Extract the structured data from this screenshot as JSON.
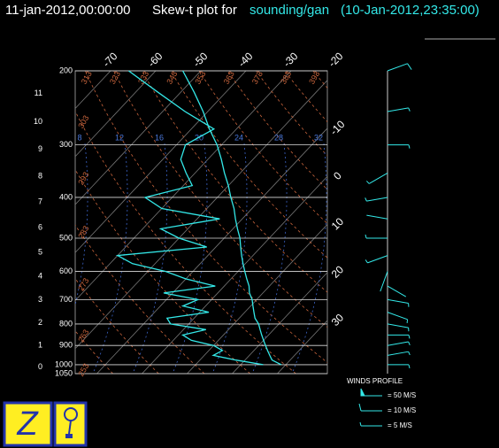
{
  "header": {
    "time": "11-jan-2012,00:00:00",
    "title": "Skew-t plot for",
    "source": "sounding/gan",
    "obs_time": "(10-Jan-2012,23:35:00)"
  },
  "chart_data": {
    "type": "skewt",
    "ylim": [
      200,
      1050
    ],
    "log_scale": true,
    "pressure_ticks": [
      200,
      300,
      400,
      500,
      600,
      700,
      800,
      900,
      1000,
      1050
    ],
    "height_ticks": [
      0,
      1,
      2,
      3,
      4,
      5,
      6,
      7,
      8,
      9,
      10,
      11
    ],
    "temperature_ticks": [
      -70,
      -60,
      -50,
      -40,
      -30,
      -20,
      -10,
      0,
      10,
      20,
      30
    ],
    "adiabat_labels": [
      253,
      263,
      273,
      283,
      293,
      303,
      313,
      323,
      333,
      343,
      353,
      363,
      373,
      383,
      393
    ],
    "moist_labels": [
      8,
      12,
      16,
      20,
      24,
      28,
      32
    ],
    "color": "#33e8e8",
    "pressure": [
      1000,
      975,
      950,
      925,
      900,
      875,
      850,
      825,
      800,
      775,
      750,
      725,
      700,
      675,
      650,
      625,
      600,
      575,
      550,
      525,
      500,
      475,
      450,
      425,
      400,
      375,
      350,
      325,
      300,
      275,
      250,
      225,
      200
    ],
    "temperature": [
      29,
      26,
      24.5,
      23,
      21.5,
      20,
      18.5,
      17,
      15.5,
      13.5,
      12,
      10.5,
      9,
      7,
      5.5,
      3.5,
      1.5,
      -0.5,
      -2.5,
      -4.5,
      -6.5,
      -9,
      -11.5,
      -14,
      -17,
      -20,
      -23.5,
      -27,
      -31,
      -36,
      -41,
      -47,
      -54
    ],
    "dewpoint": [
      25,
      18,
      12,
      13,
      10,
      4,
      1,
      5,
      -4,
      -6,
      2,
      -5,
      -3,
      -12,
      -2,
      -10,
      -16,
      -25,
      -30,
      -12,
      -20,
      -26,
      -15,
      -30,
      -36,
      -28,
      -32,
      -36,
      -38,
      -35,
      -45,
      -55,
      -66
    ],
    "winds": {
      "pressure": [
        1000,
        950,
        900,
        850,
        800,
        750,
        700,
        650,
        600,
        550,
        500,
        450,
        400,
        350,
        300,
        250,
        200
      ],
      "speed": [
        6,
        8,
        9,
        8,
        7,
        6,
        5,
        4,
        3,
        5,
        6,
        4,
        5,
        8,
        6,
        9,
        10
      ],
      "direction": [
        90,
        80,
        80,
        90,
        100,
        110,
        100,
        120,
        200,
        250,
        270,
        280,
        260,
        240,
        90,
        80,
        70
      ]
    },
    "legend": {
      "title": "WINDS PROFILE",
      "items": [
        {
          "speed": 50,
          "label": "= 50 M/S"
        },
        {
          "speed": 10,
          "label": "= 10 M/S"
        },
        {
          "speed": 5,
          "label": "= 5 M/S"
        }
      ]
    }
  }
}
